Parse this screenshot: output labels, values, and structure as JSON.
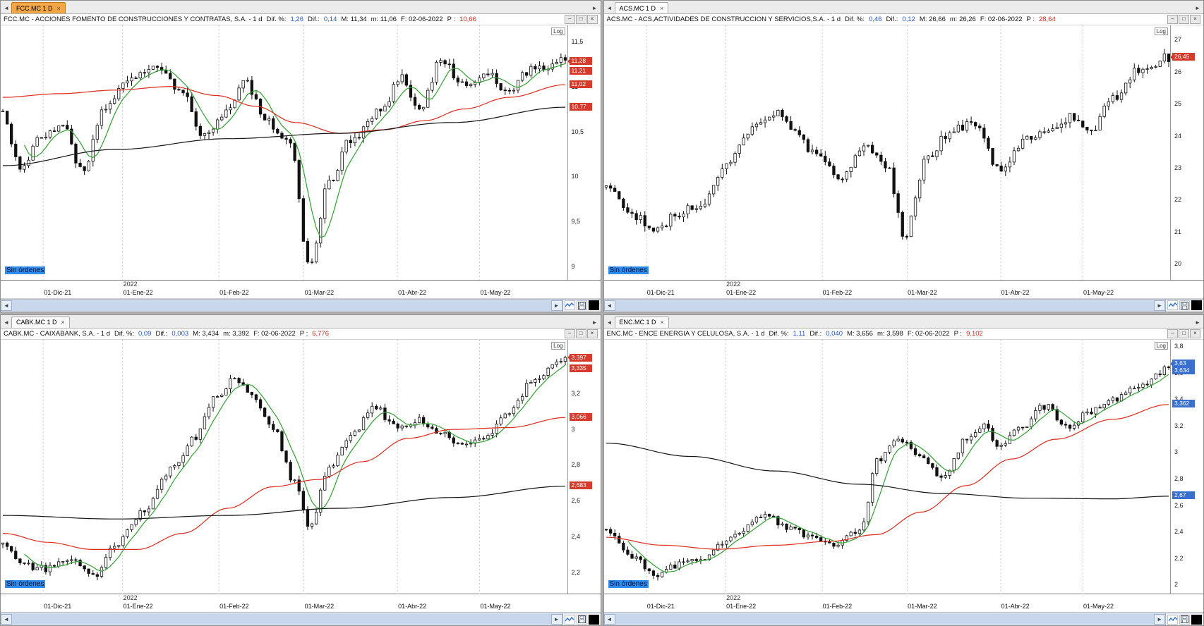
{
  "colors": {
    "active_tab": "#f2a544",
    "badge_red": "#d63a2a",
    "badge_blue": "#3a6fd0",
    "ma_green": "#2fa12f",
    "ma_red": "#dd2a1a",
    "ma_black": "#141414",
    "dif_blue": "#2255cc",
    "price_red": "#d42a1e",
    "no_orders_bg": "#2f8bee"
  },
  "icons": {
    "nav_left": "◄",
    "nav_right": "►",
    "minimize": "–",
    "maximize": "□",
    "close": "×",
    "tab_close": "×"
  },
  "panels": [
    {
      "tab": {
        "label": "FCC.MC 1 D",
        "active": true
      },
      "title": {
        "instrument": "FCC.MC - ACCIONES FOMENTO DE CONSTRUCCIONES Y CONTRATAS, S.A. - 1 d",
        "dif_pct_label": "Dif. %:",
        "dif_pct": "1,26",
        "dif_label": "Dif.:",
        "dif": "0,14",
        "max": "M: 11,34",
        "min": "m: 11,06",
        "date": "F: 02-06-2022",
        "open_label": "P :",
        "open_value": "10,66"
      },
      "no_orders": "Sin órdenes",
      "year_label": "2022",
      "log_label": "Log",
      "badges": [
        {
          "label": "11,28",
          "p": 11.28,
          "color": "#d63a2a",
          "arrow": true
        },
        {
          "label": "11,21",
          "p": 11.17,
          "color": "#d63a2a",
          "arrow": false
        },
        {
          "label": "11,02",
          "p": 11.02,
          "color": "#d63a2a",
          "arrow": false
        },
        {
          "label": "10,77",
          "p": 10.77,
          "color": "#d63a2a",
          "arrow": false
        }
      ],
      "chart_data": {
        "type": "candlestick",
        "scale": "log",
        "bars": 132,
        "seed": 13,
        "bar_volatility": 0.055,
        "ymin": 8.85,
        "ymax": 11.68,
        "x_ticks": [
          {
            "label": "01-Dic-21",
            "f": 0.075
          },
          {
            "label": "01-Ene-22",
            "f": 0.215
          },
          {
            "label": "01-Feb-22",
            "f": 0.385
          },
          {
            "label": "01-Mar-22",
            "f": 0.535
          },
          {
            "label": "01-Abr-22",
            "f": 0.7
          },
          {
            "label": "01-May-22",
            "f": 0.845
          }
        ],
        "y_ticks": [
          {
            "label": "11,5",
            "p": 11.5
          },
          {
            "label": "11",
            "p": 11
          },
          {
            "label": "10,5",
            "p": 10.5
          },
          {
            "label": "10",
            "p": 10
          },
          {
            "label": "9,5",
            "p": 9.5
          },
          {
            "label": "9",
            "p": 9
          }
        ],
        "close_path_anchors": [
          [
            0,
            10.72
          ],
          [
            0.03,
            10.1
          ],
          [
            0.07,
            10.45
          ],
          [
            0.11,
            10.58
          ],
          [
            0.14,
            10.05
          ],
          [
            0.18,
            10.72
          ],
          [
            0.22,
            11.1
          ],
          [
            0.27,
            11.22
          ],
          [
            0.31,
            11.0
          ],
          [
            0.36,
            10.45
          ],
          [
            0.4,
            10.72
          ],
          [
            0.43,
            11.05
          ],
          [
            0.47,
            10.6
          ],
          [
            0.51,
            10.35
          ],
          [
            0.545,
            9.05
          ],
          [
            0.58,
            9.92
          ],
          [
            0.62,
            10.42
          ],
          [
            0.67,
            10.72
          ],
          [
            0.71,
            11.1
          ],
          [
            0.74,
            10.75
          ],
          [
            0.78,
            11.3
          ],
          [
            0.82,
            11.0
          ],
          [
            0.86,
            11.15
          ],
          [
            0.9,
            10.95
          ],
          [
            0.94,
            11.2
          ],
          [
            1,
            11.28
          ]
        ],
        "ma_fast_window": 6,
        "ma_slow_anchors": [
          [
            0,
            10.88
          ],
          [
            0.1,
            10.92
          ],
          [
            0.2,
            10.96
          ],
          [
            0.3,
            11.0
          ],
          [
            0.38,
            10.9
          ],
          [
            0.45,
            10.78
          ],
          [
            0.52,
            10.6
          ],
          [
            0.6,
            10.48
          ],
          [
            0.68,
            10.52
          ],
          [
            0.75,
            10.62
          ],
          [
            0.82,
            10.75
          ],
          [
            0.9,
            10.88
          ],
          [
            1,
            11.02
          ]
        ],
        "ma_long_anchors": [
          [
            0,
            10.12
          ],
          [
            0.2,
            10.3
          ],
          [
            0.4,
            10.42
          ],
          [
            0.6,
            10.48
          ],
          [
            0.8,
            10.6
          ],
          [
            1,
            10.77
          ]
        ]
      }
    },
    {
      "tab": {
        "label": "ACS.MC 1 D",
        "active": false
      },
      "title": {
        "instrument": "ACS.MC - ACS,ACTIVIDADES DE CONSTRUCCION Y SERVICIOS,S.A. - 1 d",
        "dif_pct_label": "Dif. %:",
        "dif_pct": "0,46",
        "dif_label": "Dif.:",
        "dif": "0,12",
        "max": "M: 26,66",
        "min": "m: 26,26",
        "date": "F: 02-06-2022",
        "open_label": "P :",
        "open_value": "28,64"
      },
      "no_orders": "Sin órdenes",
      "year_label": "2022",
      "log_label": "Log",
      "badges": [
        {
          "label": "26,45",
          "p": 26.45,
          "color": "#d63a2a",
          "arrow": true
        }
      ],
      "chart_data": {
        "type": "candlestick",
        "scale": "log",
        "bars": 132,
        "seed": 47,
        "bar_volatility": 0.16,
        "ymin": 19.5,
        "ymax": 27.45,
        "x_ticks": [
          {
            "label": "01-Dic-21",
            "f": 0.075
          },
          {
            "label": "01-Ene-22",
            "f": 0.215
          },
          {
            "label": "01-Feb-22",
            "f": 0.385
          },
          {
            "label": "01-Mar-22",
            "f": 0.535
          },
          {
            "label": "01-Abr-22",
            "f": 0.7
          },
          {
            "label": "01-May-22",
            "f": 0.845
          }
        ],
        "y_ticks": [
          {
            "label": "27",
            "p": 27
          },
          {
            "label": "26",
            "p": 26
          },
          {
            "label": "25",
            "p": 25
          },
          {
            "label": "24",
            "p": 24
          },
          {
            "label": "23",
            "p": 23
          },
          {
            "label": "22",
            "p": 22
          },
          {
            "label": "21",
            "p": 21
          },
          {
            "label": "20",
            "p": 20
          }
        ],
        "close_path_anchors": [
          [
            0,
            22.4
          ],
          [
            0.05,
            21.5
          ],
          [
            0.09,
            21.1
          ],
          [
            0.13,
            21.6
          ],
          [
            0.17,
            21.9
          ],
          [
            0.22,
            23.3
          ],
          [
            0.27,
            24.5
          ],
          [
            0.3,
            24.7
          ],
          [
            0.33,
            24.2
          ],
          [
            0.37,
            23.4
          ],
          [
            0.42,
            22.7
          ],
          [
            0.46,
            23.6
          ],
          [
            0.5,
            23.0
          ],
          [
            0.53,
            20.9
          ],
          [
            0.57,
            23.3
          ],
          [
            0.61,
            24.1
          ],
          [
            0.65,
            24.4
          ],
          [
            0.7,
            23.0
          ],
          [
            0.75,
            23.9
          ],
          [
            0.79,
            24.3
          ],
          [
            0.83,
            24.6
          ],
          [
            0.86,
            24.1
          ],
          [
            0.9,
            25.2
          ],
          [
            0.95,
            26.1
          ],
          [
            1,
            26.45
          ]
        ],
        "ma_fast_window": 0,
        "ma_slow_anchors": null,
        "ma_long_anchors": null
      }
    },
    {
      "tab": {
        "label": "CABK.MC 1 D",
        "active": false
      },
      "title": {
        "instrument": "CABK.MC - CAIXABANK, S.A. - 1 d",
        "dif_pct_label": "Dif. %:",
        "dif_pct": "0,09",
        "dif_label": "Dif.:",
        "dif": "0,003",
        "max": "M: 3,434",
        "min": "m: 3,392",
        "date": "F: 02-06-2022",
        "open_label": "P :",
        "open_value": "6,776"
      },
      "no_orders": "Sin órdenes",
      "year_label": "2022",
      "log_label": "Log",
      "badges": [
        {
          "label": "3,397",
          "p": 3.397,
          "color": "#d63a2a",
          "arrow": true
        },
        {
          "label": "3,335",
          "p": 3.335,
          "color": "#d63a2a",
          "arrow": false
        },
        {
          "label": "3,066",
          "p": 3.066,
          "color": "#d63a2a",
          "arrow": false
        },
        {
          "label": "2,683",
          "p": 2.683,
          "color": "#d63a2a",
          "arrow": false
        }
      ],
      "chart_data": {
        "type": "candlestick",
        "scale": "log",
        "bars": 132,
        "seed": 91,
        "bar_volatility": 0.022,
        "ymin": 2.08,
        "ymax": 3.5,
        "x_ticks": [
          {
            "label": "01-Dic-21",
            "f": 0.075
          },
          {
            "label": "01-Ene-22",
            "f": 0.215
          },
          {
            "label": "01-Feb-22",
            "f": 0.385
          },
          {
            "label": "01-Mar-22",
            "f": 0.535
          },
          {
            "label": "01-Abr-22",
            "f": 0.7
          },
          {
            "label": "01-May-22",
            "f": 0.845
          }
        ],
        "y_ticks": [
          {
            "label": "3,2",
            "p": 3.2
          },
          {
            "label": "3",
            "p": 3
          },
          {
            "label": "2,8",
            "p": 2.8
          },
          {
            "label": "2,6",
            "p": 2.6
          },
          {
            "label": "2,4",
            "p": 2.4
          },
          {
            "label": "2,2",
            "p": 2.2
          }
        ],
        "close_path_anchors": [
          [
            0,
            2.36
          ],
          [
            0.04,
            2.24
          ],
          [
            0.08,
            2.22
          ],
          [
            0.12,
            2.27
          ],
          [
            0.16,
            2.18
          ],
          [
            0.2,
            2.35
          ],
          [
            0.25,
            2.55
          ],
          [
            0.3,
            2.78
          ],
          [
            0.34,
            2.95
          ],
          [
            0.38,
            3.18
          ],
          [
            0.41,
            3.28
          ],
          [
            0.44,
            3.2
          ],
          [
            0.48,
            3.0
          ],
          [
            0.52,
            2.7
          ],
          [
            0.545,
            2.47
          ],
          [
            0.58,
            2.78
          ],
          [
            0.62,
            2.98
          ],
          [
            0.66,
            3.12
          ],
          [
            0.7,
            3.02
          ],
          [
            0.74,
            3.05
          ],
          [
            0.78,
            2.98
          ],
          [
            0.82,
            2.9
          ],
          [
            0.86,
            2.95
          ],
          [
            0.9,
            3.1
          ],
          [
            0.95,
            3.3
          ],
          [
            1,
            3.4
          ]
        ],
        "ma_fast_window": 6,
        "ma_slow_anchors": [
          [
            0,
            2.42
          ],
          [
            0.08,
            2.37
          ],
          [
            0.16,
            2.33
          ],
          [
            0.24,
            2.33
          ],
          [
            0.32,
            2.42
          ],
          [
            0.4,
            2.56
          ],
          [
            0.48,
            2.68
          ],
          [
            0.56,
            2.72
          ],
          [
            0.64,
            2.82
          ],
          [
            0.72,
            2.95
          ],
          [
            0.8,
            3.0
          ],
          [
            0.9,
            3.01
          ],
          [
            1,
            3.066
          ]
        ],
        "ma_long_anchors": [
          [
            0,
            2.52
          ],
          [
            0.2,
            2.5
          ],
          [
            0.4,
            2.52
          ],
          [
            0.6,
            2.56
          ],
          [
            0.8,
            2.62
          ],
          [
            1,
            2.683
          ]
        ]
      }
    },
    {
      "tab": {
        "label": "ENC.MC 1 D",
        "active": false
      },
      "title": {
        "instrument": "ENC.MC - ENCE ENERGIA Y CELULOSA, S.A. - 1 d",
        "dif_pct_label": "Dif. %:",
        "dif_pct": "1,11",
        "dif_label": "Dif.:",
        "dif": "0,040",
        "max": "M: 3,656",
        "min": "m: 3,598",
        "date": "F: 02-06-2022",
        "open_label": "P :",
        "open_value": "9,102"
      },
      "no_orders": "Sin órdenes",
      "year_label": "2022",
      "log_label": "Log",
      "badges": [
        {
          "label": "3,63",
          "p": 3.665,
          "color": "#3a6fd0",
          "arrow": true
        },
        {
          "label": "3,634",
          "p": 3.615,
          "color": "#3a6fd0",
          "arrow": false
        },
        {
          "label": "3,362",
          "p": 3.362,
          "color": "#3a6fd0",
          "arrow": false
        },
        {
          "label": "2,67",
          "p": 2.67,
          "color": "#3a6fd0",
          "arrow": false
        }
      ],
      "chart_data": {
        "type": "candlestick",
        "scale": "log",
        "bars": 132,
        "seed": 152,
        "bar_volatility": 0.028,
        "ymin": 1.93,
        "ymax": 3.85,
        "x_ticks": [
          {
            "label": "01-Dic-21",
            "f": 0.075
          },
          {
            "label": "01-Ene-22",
            "f": 0.215
          },
          {
            "label": "01-Feb-22",
            "f": 0.385
          },
          {
            "label": "01-Mar-22",
            "f": 0.535
          },
          {
            "label": "01-Abr-22",
            "f": 0.7
          },
          {
            "label": "01-May-22",
            "f": 0.845
          }
        ],
        "y_ticks": [
          {
            "label": "3,8",
            "p": 3.8
          },
          {
            "label": "3,6",
            "p": 3.6
          },
          {
            "label": "3,4",
            "p": 3.4
          },
          {
            "label": "3,2",
            "p": 3.2
          },
          {
            "label": "3",
            "p": 3
          },
          {
            "label": "2,8",
            "p": 2.8
          },
          {
            "label": "2,6",
            "p": 2.6
          },
          {
            "label": "2,4",
            "p": 2.4
          },
          {
            "label": "2,2",
            "p": 2.2
          },
          {
            "label": "2",
            "p": 2
          }
        ],
        "close_path_anchors": [
          [
            0,
            2.42
          ],
          [
            0.05,
            2.2
          ],
          [
            0.09,
            2.08
          ],
          [
            0.13,
            2.15
          ],
          [
            0.17,
            2.2
          ],
          [
            0.22,
            2.35
          ],
          [
            0.28,
            2.52
          ],
          [
            0.33,
            2.42
          ],
          [
            0.37,
            2.35
          ],
          [
            0.41,
            2.3
          ],
          [
            0.45,
            2.42
          ],
          [
            0.485,
            2.95
          ],
          [
            0.52,
            3.1
          ],
          [
            0.56,
            2.95
          ],
          [
            0.6,
            2.8
          ],
          [
            0.64,
            3.1
          ],
          [
            0.67,
            3.2
          ],
          [
            0.7,
            3.05
          ],
          [
            0.74,
            3.2
          ],
          [
            0.78,
            3.35
          ],
          [
            0.82,
            3.2
          ],
          [
            0.86,
            3.3
          ],
          [
            0.9,
            3.4
          ],
          [
            0.95,
            3.5
          ],
          [
            1,
            3.63
          ]
        ],
        "ma_fast_window": 6,
        "ma_slow_anchors": [
          [
            0,
            2.36
          ],
          [
            0.1,
            2.3
          ],
          [
            0.2,
            2.27
          ],
          [
            0.3,
            2.3
          ],
          [
            0.4,
            2.33
          ],
          [
            0.48,
            2.38
          ],
          [
            0.56,
            2.55
          ],
          [
            0.64,
            2.75
          ],
          [
            0.72,
            2.95
          ],
          [
            0.8,
            3.1
          ],
          [
            0.9,
            3.25
          ],
          [
            1,
            3.362
          ]
        ],
        "ma_long_anchors": [
          [
            0,
            3.07
          ],
          [
            0.15,
            2.97
          ],
          [
            0.3,
            2.86
          ],
          [
            0.45,
            2.76
          ],
          [
            0.6,
            2.69
          ],
          [
            0.75,
            2.655
          ],
          [
            0.9,
            2.65
          ],
          [
            1,
            2.67
          ]
        ]
      }
    }
  ]
}
